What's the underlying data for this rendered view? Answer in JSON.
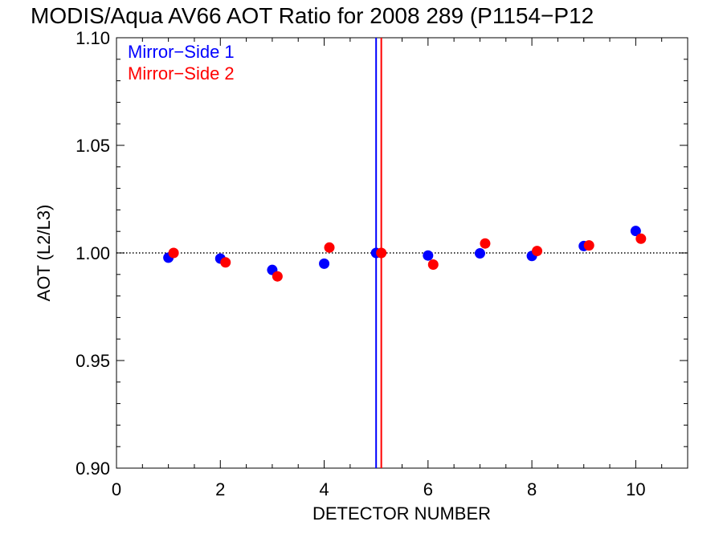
{
  "chart_data": {
    "type": "scatter",
    "title": "MODIS/Aqua AV66 AOT Ratio for 2008 289 (P1154−P12",
    "xlabel": "DETECTOR NUMBER",
    "ylabel": "AOT (L2/L3)",
    "xlim": [
      0,
      11
    ],
    "ylim": [
      0.9,
      1.1
    ],
    "x_ticks": [
      {
        "value": 0,
        "label": "0"
      },
      {
        "value": 2,
        "label": "2"
      },
      {
        "value": 4,
        "label": "4"
      },
      {
        "value": 6,
        "label": "6"
      },
      {
        "value": 8,
        "label": "8"
      },
      {
        "value": 10,
        "label": "10"
      }
    ],
    "y_ticks": [
      {
        "value": 0.9,
        "label": "0.90"
      },
      {
        "value": 0.95,
        "label": "0.95"
      },
      {
        "value": 1.0,
        "label": "1.00"
      },
      {
        "value": 1.05,
        "label": "1.05"
      },
      {
        "value": 1.1,
        "label": "1.10"
      }
    ],
    "legend_position": "top-left",
    "reference_line": {
      "y": 1.0,
      "style": "dotted",
      "color": "#000000"
    },
    "vertical_lines": [
      {
        "x": 5.0,
        "color": "#0000ff"
      },
      {
        "x": 5.1,
        "color": "#ff0000"
      }
    ],
    "series": [
      {
        "name": "Mirror−Side 1",
        "color": "#0000ff",
        "x": [
          1,
          2,
          3,
          4,
          5,
          6,
          7,
          8,
          9,
          10
        ],
        "y": [
          0.9978,
          0.9974,
          0.9921,
          0.995,
          1.0,
          0.9988,
          0.9998,
          0.9986,
          1.0032,
          1.0102
        ]
      },
      {
        "name": "Mirror−Side 2",
        "color": "#ff0000",
        "x": [
          1.1,
          2.1,
          3.1,
          4.1,
          5.1,
          6.1,
          7.1,
          8.1,
          9.1,
          10.1
        ],
        "y": [
          1.0,
          0.9956,
          0.9891,
          1.0025,
          1.0,
          0.9946,
          1.0044,
          1.0009,
          1.0035,
          1.0066
        ]
      }
    ]
  }
}
